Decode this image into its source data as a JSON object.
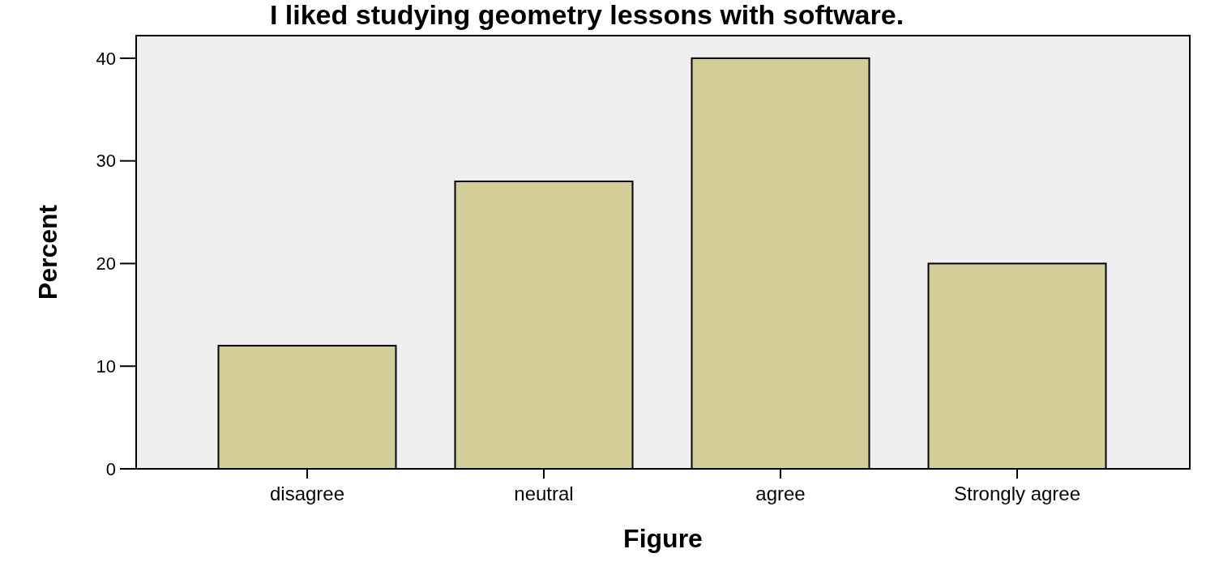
{
  "chart_data": {
    "type": "bar",
    "title": "I liked studying geometry lessons with software.",
    "xlabel": "Figure",
    "ylabel": "Percent",
    "categories": [
      "disagree",
      "neutral",
      "agree",
      "Strongly agree"
    ],
    "values": [
      12,
      28,
      40,
      20
    ],
    "color": "#d3ce98",
    "ylim": [
      0,
      42.2
    ],
    "yticks": [
      0,
      10,
      20,
      30,
      40
    ],
    "grid": false
  }
}
